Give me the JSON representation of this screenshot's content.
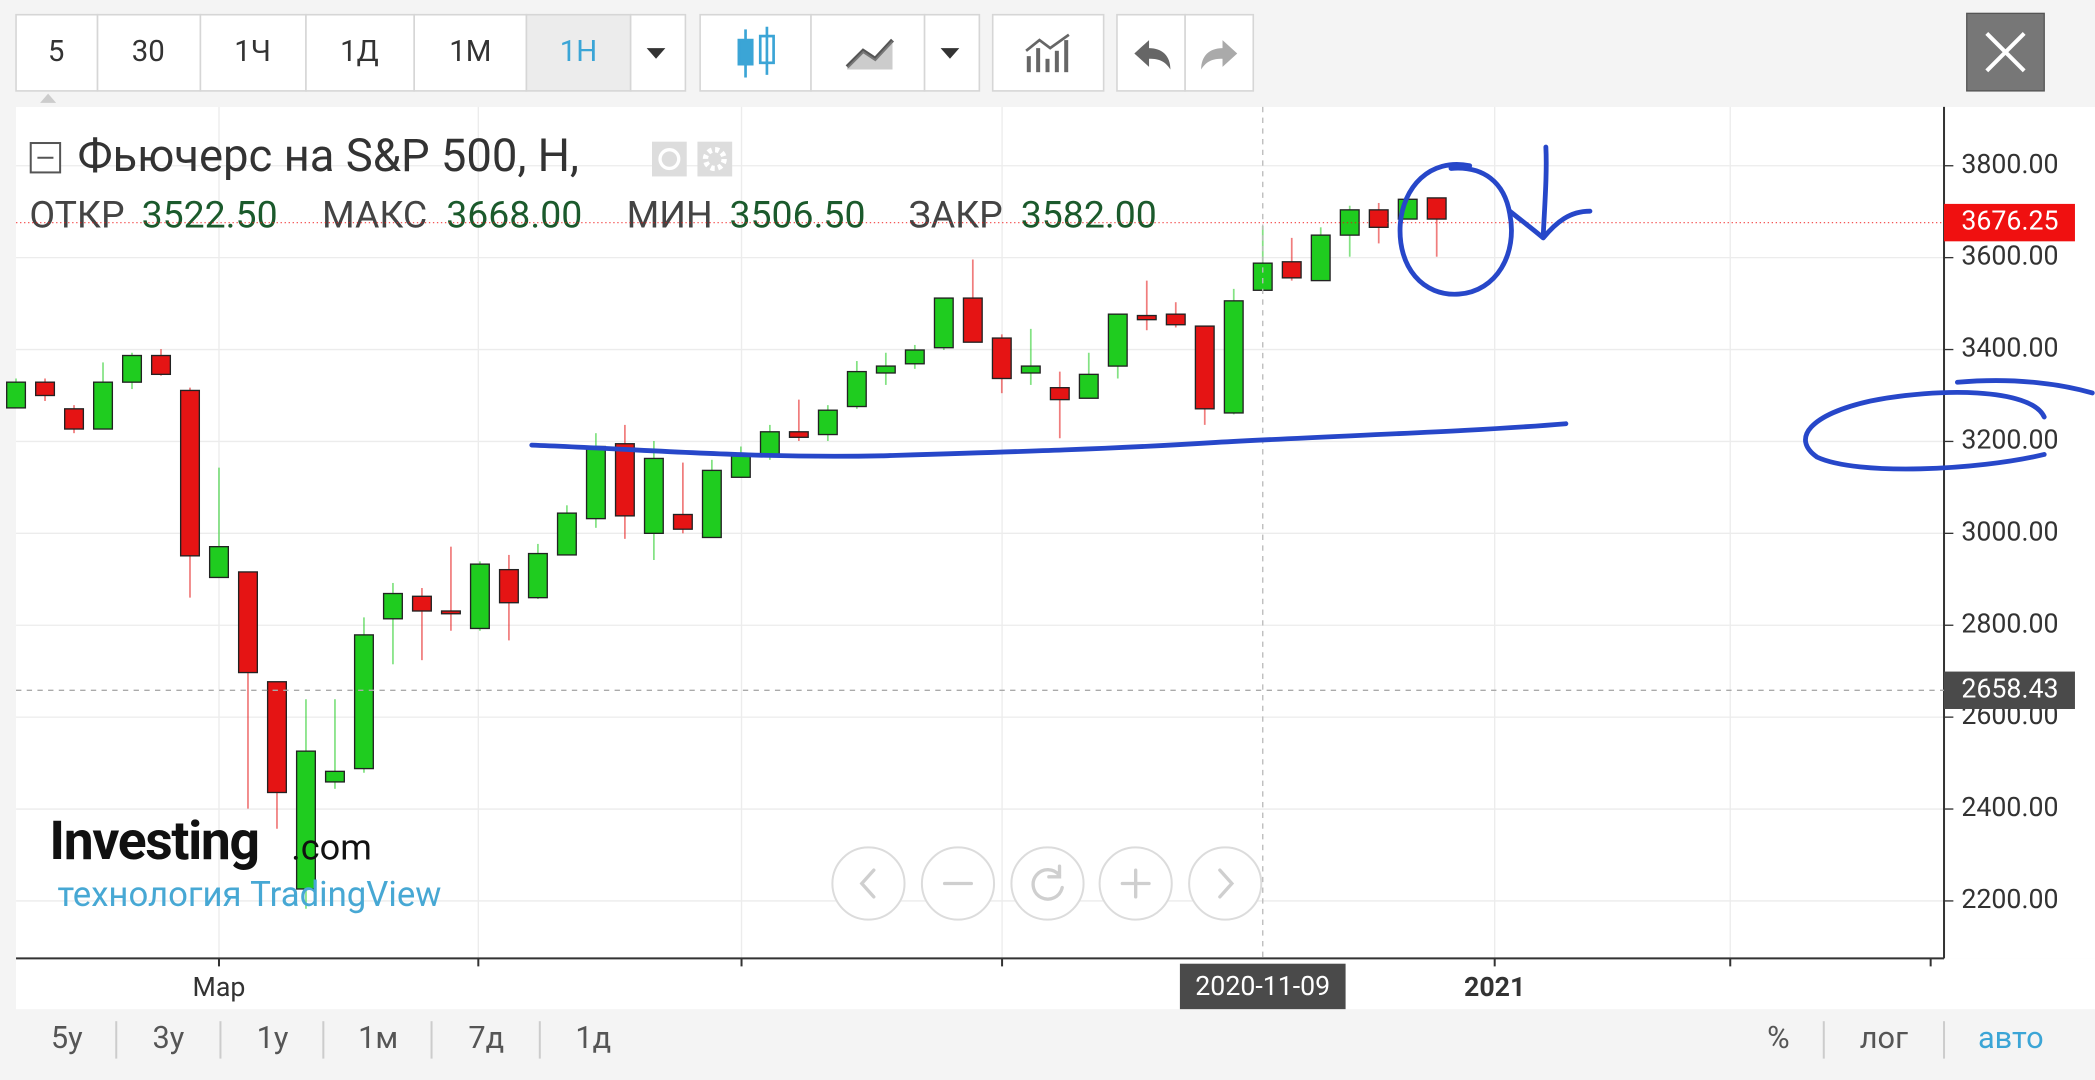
{
  "toolbar": {
    "intervals": [
      "5",
      "30",
      "1Ч",
      "1Д",
      "1М",
      "1Н"
    ]
  },
  "chart_data": {
    "type": "candlestick",
    "title": "Фьючерс на S&P 500, Н,",
    "stats": [
      {
        "label": "ОТКР",
        "value": "3522.50"
      },
      {
        "label": "МАКС",
        "value": "3668.00"
      },
      {
        "label": "МИН",
        "value": "3506.50"
      },
      {
        "label": "ЗАКР",
        "value": "3582.00"
      }
    ],
    "categories": [
      null,
      null,
      null,
      null,
      null,
      null,
      null,
      "Мар",
      null,
      null,
      null,
      null,
      null,
      null,
      null,
      null,
      null,
      null,
      null,
      null,
      null,
      null,
      null,
      null,
      null,
      null,
      null,
      null,
      null,
      null,
      null,
      null,
      null,
      null,
      null,
      null,
      null,
      null,
      null,
      null,
      null,
      null,
      null,
      "2020-11-09",
      null,
      null,
      null,
      null,
      null,
      null,
      null,
      "2021"
    ],
    "open": [
      3273,
      3329,
      3271,
      3227,
      3329,
      3387,
      3311,
      2904,
      2916,
      2677,
      2226,
      2459,
      2488,
      2814,
      2863,
      2831,
      2793,
      2921,
      2860,
      2953,
      3032,
      3195,
      3000,
      3041,
      2991,
      3122,
      3172,
      3221,
      3215,
      3276,
      3349,
      3369,
      3404,
      3512,
      3425,
      3349,
      3317,
      3294,
      3364,
      3474,
      3477,
      3451,
      3262,
      3529,
      3591,
      3550,
      3649,
      3704,
      3684,
      3730,
      null,
      null
    ],
    "high": [
      3337,
      3337,
      3279,
      3372,
      3393,
      3401,
      3317,
      3143,
      2916,
      2677,
      2639,
      2639,
      2817,
      2892,
      2881,
      2971,
      2939,
      2953,
      2977,
      3061,
      3218,
      3236,
      3201,
      3154,
      3160,
      3189,
      3236,
      3291,
      3279,
      3375,
      3393,
      3410,
      3512,
      3596,
      3433,
      3445,
      3352,
      3393,
      3477,
      3550,
      3503,
      3451,
      3532,
      3669,
      3643,
      3666,
      3713,
      3719,
      3727,
      3730,
      null,
      null
    ],
    "low": [
      3273,
      3288,
      3218,
      3227,
      3314,
      3343,
      2860,
      2904,
      2401,
      2357,
      2183,
      2444,
      2479,
      2715,
      2724,
      2788,
      2788,
      2767,
      2857,
      2953,
      3012,
      2988,
      2942,
      3000,
      2991,
      3122,
      3160,
      3201,
      3201,
      3271,
      3323,
      3358,
      3399,
      3416,
      3305,
      3323,
      3207,
      3294,
      3337,
      3442,
      3448,
      3236,
      3259,
      3529,
      3550,
      3550,
      3602,
      3631,
      3684,
      3602,
      null,
      null
    ],
    "close": [
      3329,
      3300,
      3227,
      3329,
      3387,
      3346,
      2951,
      2971,
      2697,
      2436,
      2526,
      2482,
      2779,
      2869,
      2831,
      2825,
      2933,
      2849,
      2956,
      3044,
      3189,
      3038,
      3163,
      3009,
      3137,
      3172,
      3221,
      3209,
      3268,
      3352,
      3364,
      3399,
      3512,
      3416,
      3337,
      3364,
      3291,
      3346,
      3477,
      3465,
      3454,
      3271,
      3506,
      3588,
      3556,
      3649,
      3704,
      3666,
      3727,
      3684,
      null,
      null
    ],
    "up_color": "#1fcc1f",
    "down_color": "#e51414",
    "ylim": [
      2075,
      3928
    ],
    "yticks": [
      {
        "value": 2200,
        "label": "2200.00"
      },
      {
        "value": 2400,
        "label": "2400.00"
      },
      {
        "value": 2600,
        "label": "2600.00"
      },
      {
        "value": 2800,
        "label": "2800.00"
      },
      {
        "value": 3000,
        "label": "3000.00"
      },
      {
        "value": 3200,
        "label": "3200.00"
      },
      {
        "value": 3400,
        "label": "3400.00"
      },
      {
        "value": 3600,
        "label": "3600.00"
      },
      {
        "value": 3800,
        "label": "3800.00"
      }
    ],
    "grid": true,
    "last_price": 3676.25,
    "last_price_color": "#f01010",
    "crosshair_y": 2658.43,
    "crosshair_x": 43
  },
  "watermark": {
    "brand": "Investing",
    "brand_suffix": ".com",
    "tagline": "технология TradingView"
  },
  "footer": {
    "ranges": [
      "5у",
      "3у",
      "1у",
      "1м",
      "7д",
      "1д"
    ],
    "options": [
      "%",
      "лог",
      "авто"
    ]
  }
}
